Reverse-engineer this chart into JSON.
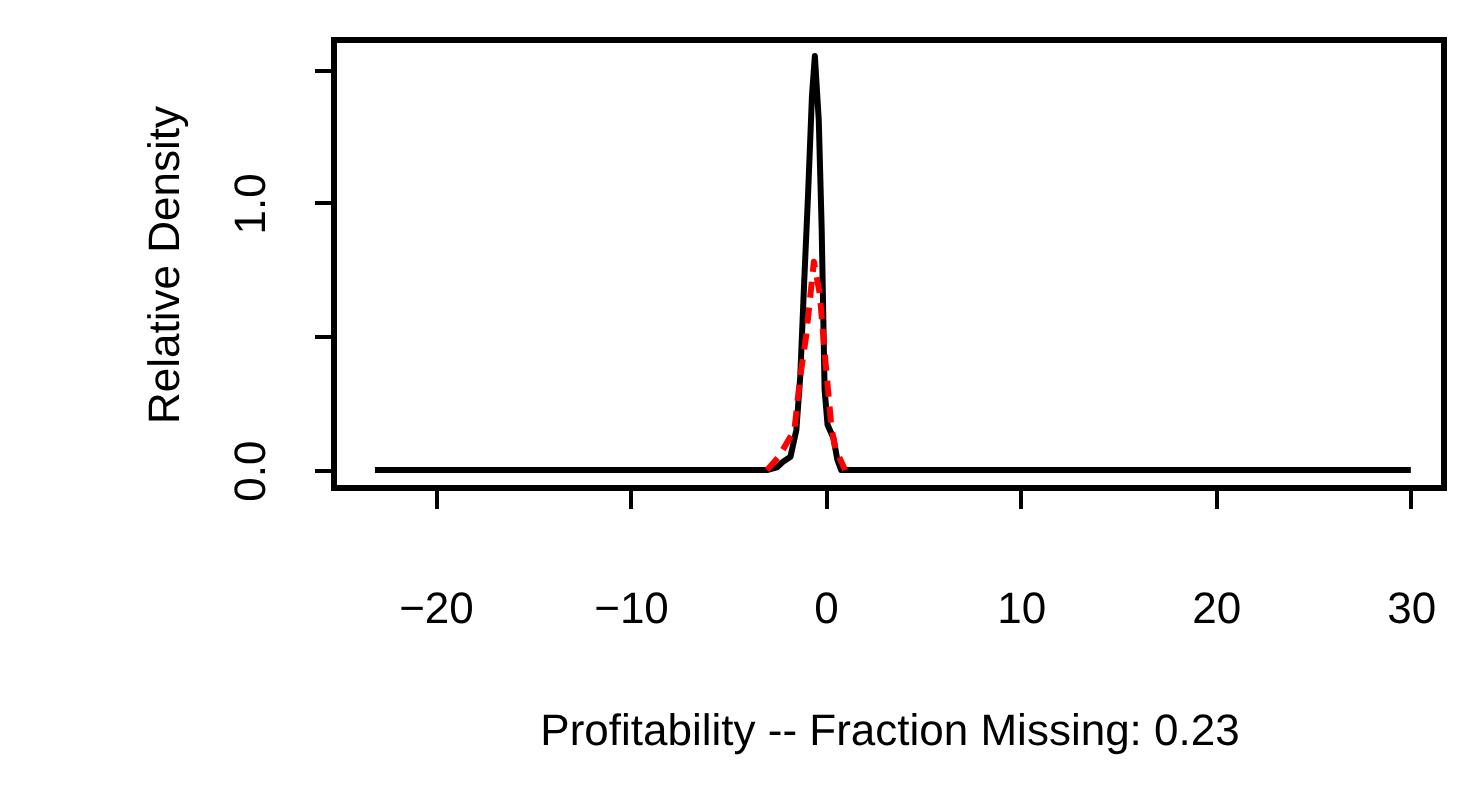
{
  "chart_data": {
    "type": "line",
    "xlabel": "Profitability  --  Fraction Missing: 0.23",
    "ylabel": "Relative Density",
    "xlim": [
      -25.2,
      31.7
    ],
    "ylim": [
      -0.067,
      1.61
    ],
    "xticks": [
      -20,
      -10,
      0,
      10,
      20,
      30
    ],
    "yticks": [
      {
        "value": 0,
        "label": "0.0"
      },
      {
        "value": 0.5,
        "label": null
      },
      {
        "value": 1,
        "label": "1.0"
      },
      {
        "value": 1.5,
        "label": null
      }
    ],
    "grid": false,
    "series": [
      {
        "color": "#000000",
        "line_style": "solid",
        "x": [
          -23.1,
          -3,
          -2.5,
          -2.2,
          -1.8,
          -1.5,
          -1.3,
          -1.1,
          -0.9,
          -0.7,
          -0.55,
          -0.35,
          -0.2,
          -0.05,
          0.1,
          0.4,
          0.6,
          0.8,
          30
        ],
        "values": [
          0,
          0,
          0.01,
          0.03,
          0.05,
          0.15,
          0.35,
          0.7,
          1.03,
          1.4,
          1.55,
          1.31,
          0.9,
          0.3,
          0.17,
          0.12,
          0.04,
          0,
          0
        ]
      },
      {
        "color": "#ff0000",
        "line_style": "dashed",
        "x": [
          -3,
          -2.4,
          -2,
          -1.6,
          -1.3,
          -1.0,
          -0.6,
          -0.3,
          0,
          0.3,
          0.5,
          1.0
        ],
        "values": [
          0,
          0.05,
          0.1,
          0.15,
          0.35,
          0.5,
          0.78,
          0.66,
          0.4,
          0.16,
          0.08,
          0
        ]
      }
    ]
  }
}
